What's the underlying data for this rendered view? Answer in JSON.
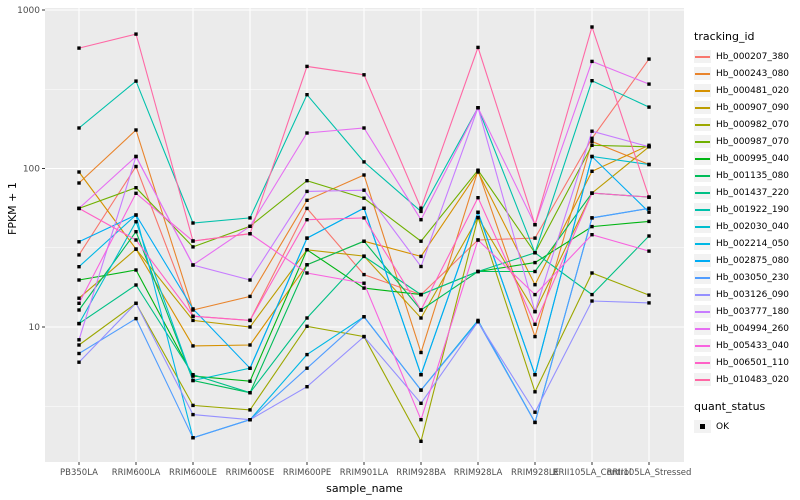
{
  "chart_data": {
    "type": "line",
    "title": "",
    "xlabel": "sample_name",
    "ylabel": "FPKM + 1",
    "y_scale": "log10",
    "y_ticks": [
      10,
      100,
      1000
    ],
    "y_minor_ticks": [
      3.162,
      31.62,
      316.2
    ],
    "ylim": [
      1.4,
      1030
    ],
    "grid": "white major and minor gridlines on grey panel",
    "legend_position": "right",
    "categories": [
      "PB350LA",
      "RRIM600LA",
      "RRIM600LE",
      "RRIM600SE",
      "RRIM600PE",
      "RRIM901LA",
      "RRIM928BA",
      "RRIM928LA",
      "RRIM928LE",
      "RRII105LA_Control",
      "RRII105LA_Stressed"
    ],
    "series": [
      {
        "name": "Hb_000207_380",
        "color": "#F8766D",
        "values": [
          28.5,
          103,
          11.7,
          11.0,
          56,
          21.4,
          16.0,
          35.4,
          36.4,
          155,
          490
        ]
      },
      {
        "name": "Hb_000243_080",
        "color": "#E9842C",
        "values": [
          81,
          175,
          12.8,
          15.6,
          63,
          91,
          6.9,
          97,
          8.7,
          148,
          106
        ]
      },
      {
        "name": "Hb_000481_020",
        "color": "#D69100",
        "values": [
          95,
          31,
          7.6,
          7.7,
          24.7,
          34.8,
          27.9,
          95,
          18.5,
          96,
          140
        ]
      },
      {
        "name": "Hb_000907_090",
        "color": "#BC9D00",
        "values": [
          15.2,
          31,
          11.0,
          10.0,
          30.7,
          28,
          11.4,
          49,
          12.5,
          70,
          137
        ]
      },
      {
        "name": "Hb_000982_070",
        "color": "#9CA700",
        "values": [
          7.7,
          14.1,
          3.2,
          3.0,
          10.1,
          8.7,
          1.9,
          49,
          3.9,
          21.9,
          15.9
        ]
      },
      {
        "name": "Hb_000987_070",
        "color": "#6FB000",
        "values": [
          56,
          75.7,
          32,
          43.2,
          83.8,
          65,
          34.8,
          97.5,
          29.4,
          140,
          137
        ]
      },
      {
        "name": "Hb_000995_040",
        "color": "#00B513",
        "values": [
          19.8,
          22.9,
          4.9,
          4.55,
          30.7,
          17.6,
          16.0,
          22.4,
          25.5,
          43,
          46.4
        ]
      },
      {
        "name": "Hb_001135_080",
        "color": "#00BC59",
        "values": [
          12.8,
          39.9,
          4.6,
          3.85,
          24.7,
          34.8,
          12.8,
          22.4,
          22.4,
          70,
          66
        ]
      },
      {
        "name": "Hb_001437_220",
        "color": "#00C085",
        "values": [
          10.5,
          18.4,
          5.0,
          3.85,
          11.4,
          27.9,
          16.0,
          22.4,
          29.4,
          16.0,
          37.5
        ]
      },
      {
        "name": "Hb_001922_190",
        "color": "#00C1AB",
        "values": [
          180,
          356,
          45.3,
          48.8,
          292,
          110,
          53.6,
          242,
          29.4,
          358,
          244
        ]
      },
      {
        "name": "Hb_002030_040",
        "color": "#00BECE",
        "values": [
          10.5,
          46.2,
          4.6,
          5.5,
          36.4,
          56.2,
          5.0,
          53,
          5.0,
          119,
          106
        ]
      },
      {
        "name": "Hb_002214_050",
        "color": "#00B8E5",
        "values": [
          24,
          50.9,
          2.0,
          2.6,
          6.7,
          11.6,
          4.0,
          11.0,
          2.5,
          48.8,
          56
        ]
      },
      {
        "name": "Hb_002875_080",
        "color": "#00ACF4",
        "values": [
          34.5,
          50.9,
          13.0,
          5.5,
          36.4,
          56.2,
          5.0,
          53,
          5.0,
          119,
          53
        ]
      },
      {
        "name": "Hb_003050_230",
        "color": "#519DFF",
        "values": [
          6.8,
          11.3,
          2.0,
          2.6,
          5.5,
          11.6,
          4.0,
          10.8,
          2.5,
          48.8,
          56
        ]
      },
      {
        "name": "Hb_003126_090",
        "color": "#9590FF",
        "values": [
          6.0,
          14.1,
          2.8,
          2.6,
          4.2,
          8.7,
          3.3,
          10.8,
          2.9,
          14.6,
          14.2
        ]
      },
      {
        "name": "Hb_003777_180",
        "color": "#C77CFF",
        "values": [
          8.3,
          119,
          24.6,
          19.8,
          71.7,
          73,
          24.1,
          242,
          12.5,
          172,
          137
        ]
      },
      {
        "name": "Hb_004994_260",
        "color": "#E66FF2",
        "values": [
          56,
          119,
          24.6,
          43.2,
          167.5,
          180,
          47.5,
          242,
          44.2,
          474,
          341
        ]
      },
      {
        "name": "Hb_005433_040",
        "color": "#F863DF",
        "values": [
          14.1,
          69.7,
          34.9,
          38.8,
          21.9,
          18.9,
          2.6,
          35.4,
          16.0,
          38.2,
          30.1
        ]
      },
      {
        "name": "Hb_006501_110",
        "color": "#FF61C7",
        "values": [
          56,
          35.4,
          11.7,
          11.0,
          47.5,
          48.8,
          12.8,
          65.4,
          10.4,
          70,
          66
        ]
      },
      {
        "name": "Hb_010483_020",
        "color": "#FF68A5",
        "values": [
          575,
          705,
          34.9,
          38.8,
          441,
          390,
          56.2,
          581,
          44.2,
          781,
          66
        ]
      }
    ]
  },
  "legend": {
    "title": "tracking_id"
  },
  "quant_legend": {
    "title": "quant_status",
    "entries": [
      {
        "label": "OK",
        "color": "#000000",
        "marker": "square"
      }
    ]
  },
  "colors": {
    "panel_bg": "#EBEBEB",
    "grid": "#FFFFFF",
    "axis_text": "#4D4D4D",
    "title_text": "#000000",
    "legend_key_bg": "#F2F2F2",
    "point": "#000000",
    "tick_mark": "#333333"
  }
}
